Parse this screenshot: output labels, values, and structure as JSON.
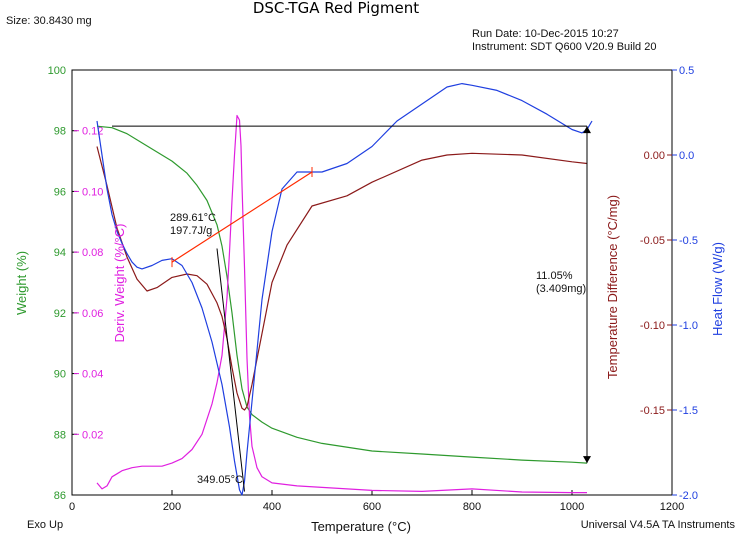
{
  "chart_data": {
    "type": "line",
    "title": "DSC-TGA Red Pigment",
    "header": {
      "size": "Size:  30.8430 mg",
      "run_date": "Run Date: 10-Dec-2015 10:27",
      "instrument": "Instrument: SDT Q600 V20.9 Build 20"
    },
    "footer": {
      "left": "Exo Up",
      "right": "Universal V4.5A TA Instruments"
    },
    "xlabel": "Temperature (°C)",
    "xlim": [
      0,
      1200
    ],
    "xticks": [
      "0",
      "200",
      "400",
      "600",
      "800",
      "1000",
      "1200"
    ],
    "axes": {
      "weight": {
        "label": "Weight (%)",
        "color": "#2e9a2e",
        "lim": [
          86,
          100
        ],
        "ticks": [
          "86",
          "88",
          "90",
          "92",
          "94",
          "96",
          "98",
          "100"
        ]
      },
      "deriv": {
        "label": "Deriv. Weight (%/°C)",
        "color": "#e020e0",
        "lim": [
          0,
          0.14
        ],
        "ticks": [
          "0.02",
          "0.04",
          "0.06",
          "0.08",
          "0.10",
          "0.12"
        ]
      },
      "tempdiff": {
        "label": "Temperature Difference (°C/mg)",
        "color": "#8b1a1a",
        "lim": [
          -0.2,
          0.05
        ],
        "ticks": [
          "-0.15",
          "-0.10",
          "-0.05",
          "0.00"
        ]
      },
      "heatflow": {
        "label": "Heat Flow (W/g)",
        "color": "#1f3fe0",
        "lim": [
          -2.0,
          0.5
        ],
        "ticks": [
          "-2.0",
          "-1.5",
          "-1.0",
          "-0.5",
          "0.0",
          "0.5"
        ]
      }
    },
    "series": [
      {
        "key": "weight",
        "color": "#2e9a2e",
        "x": [
          50,
          80,
          110,
          140,
          170,
          200,
          230,
          250,
          270,
          290,
          300,
          310,
          320,
          330,
          340,
          350,
          360,
          380,
          400,
          450,
          500,
          600,
          700,
          800,
          900,
          1000,
          1030
        ],
        "y": [
          98.15,
          98.1,
          97.9,
          97.6,
          97.3,
          97.0,
          96.6,
          96.2,
          95.7,
          94.9,
          94.2,
          93.2,
          92.0,
          90.6,
          89.5,
          88.9,
          88.65,
          88.4,
          88.2,
          87.9,
          87.7,
          87.45,
          87.35,
          87.25,
          87.15,
          87.08,
          87.05
        ]
      },
      {
        "key": "deriv",
        "color": "#e020e0",
        "x": [
          50,
          60,
          70,
          80,
          90,
          100,
          120,
          140,
          160,
          180,
          200,
          220,
          240,
          260,
          280,
          290,
          300,
          310,
          315,
          320,
          325,
          330,
          335,
          338,
          340,
          345,
          350,
          355,
          360,
          370,
          380,
          400,
          450,
          500,
          550,
          600,
          700,
          800,
          900,
          1000,
          1030
        ],
        "y": [
          0.004,
          0.002,
          0.003,
          0.006,
          0.007,
          0.008,
          0.009,
          0.0095,
          0.0095,
          0.0095,
          0.0105,
          0.012,
          0.015,
          0.02,
          0.03,
          0.037,
          0.046,
          0.065,
          0.08,
          0.097,
          0.112,
          0.125,
          0.1235,
          0.115,
          0.102,
          0.075,
          0.045,
          0.026,
          0.016,
          0.009,
          0.006,
          0.004,
          0.003,
          0.0025,
          0.002,
          0.0015,
          0.0012,
          0.002,
          0.001,
          0.0008,
          0.0008
        ]
      },
      {
        "key": "tempdiff",
        "color": "#8b1a1a",
        "x": [
          50,
          70,
          90,
          110,
          130,
          150,
          170,
          200,
          230,
          250,
          270,
          290,
          300,
          310,
          320,
          330,
          340,
          345,
          350,
          360,
          380,
          400,
          430,
          480,
          550,
          600,
          700,
          750,
          800,
          900,
          1000,
          1030
        ],
        "y": [
          0.005,
          -0.018,
          -0.043,
          -0.06,
          -0.073,
          -0.08,
          -0.078,
          -0.072,
          -0.07,
          -0.071,
          -0.076,
          -0.087,
          -0.095,
          -0.108,
          -0.125,
          -0.14,
          -0.149,
          -0.15,
          -0.148,
          -0.135,
          -0.105,
          -0.075,
          -0.053,
          -0.03,
          -0.024,
          -0.016,
          -0.003,
          0.0,
          0.001,
          0.0,
          -0.004,
          -0.005
        ]
      },
      {
        "key": "heatflow",
        "color": "#1f3fe0",
        "x": [
          50,
          60,
          70,
          80,
          90,
          100,
          110,
          120,
          130,
          140,
          160,
          180,
          200,
          220,
          240,
          260,
          280,
          300,
          315,
          325,
          335,
          340,
          345,
          350,
          360,
          380,
          400,
          420,
          450,
          480,
          500,
          550,
          600,
          650,
          700,
          750,
          780,
          800,
          850,
          900,
          950,
          1000,
          1020,
          1030,
          1040
        ],
        "y": [
          0.2,
          0.0,
          -0.2,
          -0.35,
          -0.45,
          -0.52,
          -0.58,
          -0.63,
          -0.66,
          -0.67,
          -0.65,
          -0.62,
          -0.61,
          -0.65,
          -0.75,
          -0.9,
          -1.1,
          -1.35,
          -1.6,
          -1.8,
          -1.97,
          -2.0,
          -1.92,
          -1.75,
          -1.45,
          -0.85,
          -0.45,
          -0.2,
          -0.1,
          -0.1,
          -0.1,
          -0.05,
          0.05,
          0.2,
          0.3,
          0.4,
          0.42,
          0.41,
          0.38,
          0.32,
          0.24,
          0.15,
          0.13,
          0.15,
          0.2
        ]
      }
    ],
    "annotations": {
      "onset_temp": "289.61°C",
      "enthalpy": "197.7J/g",
      "peak": "349.05°C",
      "loss_pct": "11.05%",
      "loss_mg": "(3.409mg)"
    },
    "onset_line": {
      "x": [
        200,
        480
      ],
      "heatflow": [
        -0.63,
        -0.1
      ]
    },
    "loss_span": {
      "x": 1030,
      "weight": [
        98.15,
        87.05
      ],
      "hline_x": [
        80,
        1030
      ]
    },
    "grid": false
  }
}
